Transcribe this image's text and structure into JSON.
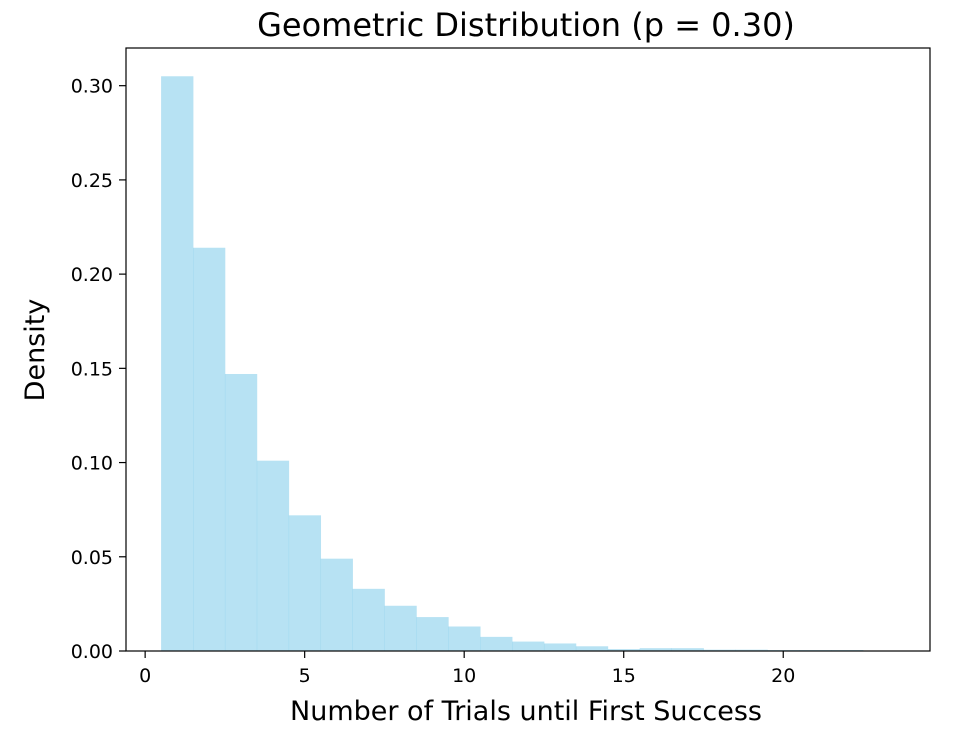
{
  "chart_data": {
    "type": "bar",
    "title": "Geometric Distribution (p = 0.30)",
    "xlabel": "Number of Trials until First Success",
    "ylabel": "Density",
    "xlim": [
      -0.6,
      24.6
    ],
    "ylim": [
      0,
      0.32
    ],
    "xticks": [
      0,
      5,
      10,
      15,
      20
    ],
    "yticks": [
      0.0,
      0.05,
      0.1,
      0.15,
      0.2,
      0.25,
      0.3
    ],
    "xtick_labels": [
      "0",
      "5",
      "10",
      "15",
      "20"
    ],
    "ytick_labels": [
      "0.00",
      "0.05",
      "0.10",
      "0.15",
      "0.20",
      "0.25",
      "0.30"
    ],
    "bar_color": "#87ceeb",
    "bar_opacity": 0.6,
    "bin_width": 1,
    "x": [
      1,
      2,
      3,
      4,
      5,
      6,
      7,
      8,
      9,
      10,
      11,
      12,
      13,
      14,
      15,
      16,
      17,
      18,
      19,
      20,
      21,
      22
    ],
    "values": [
      0.305,
      0.214,
      0.147,
      0.101,
      0.072,
      0.049,
      0.033,
      0.024,
      0.018,
      0.013,
      0.0075,
      0.005,
      0.004,
      0.0025,
      0.001,
      0.0015,
      0.0015,
      0.0007,
      0.0007,
      0.0005,
      0.0005,
      0.0005
    ],
    "grid": false,
    "legend": "none"
  }
}
